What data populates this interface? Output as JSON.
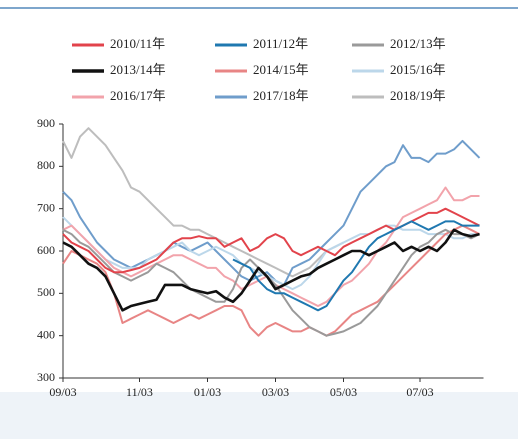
{
  "chart_data": {
    "type": "line",
    "categories": [
      "09/03",
      null,
      null,
      null,
      null,
      null,
      null,
      null,
      null,
      "11/03",
      null,
      null,
      null,
      null,
      null,
      null,
      null,
      "01/03",
      null,
      null,
      null,
      null,
      null,
      null,
      null,
      "03/03",
      null,
      null,
      null,
      null,
      null,
      null,
      null,
      "05/03",
      null,
      null,
      null,
      null,
      null,
      null,
      null,
      null,
      "07/03",
      null,
      null,
      null,
      null,
      null,
      null,
      null
    ],
    "ylim": [
      300,
      900
    ],
    "yticks": [
      300,
      400,
      500,
      600,
      700,
      800,
      900
    ],
    "series": [
      {
        "name": "2010/11年",
        "color": "#e2434b",
        "values": [
          640,
          620,
          610,
          600,
          580,
          560,
          550,
          550,
          555,
          560,
          570,
          580,
          600,
          620,
          630,
          630,
          635,
          630,
          630,
          610,
          620,
          630,
          600,
          610,
          630,
          640,
          630,
          600,
          590,
          600,
          610,
          600,
          590,
          610,
          620,
          630,
          640,
          650,
          660,
          650,
          660,
          670,
          680,
          690,
          690,
          700,
          690,
          680,
          670,
          660
        ]
      },
      {
        "name": "2011/12年",
        "color": "#1f78b0",
        "values": [
          null,
          null,
          null,
          null,
          null,
          null,
          null,
          null,
          null,
          null,
          null,
          null,
          null,
          null,
          null,
          null,
          null,
          null,
          null,
          null,
          580,
          570,
          560,
          530,
          510,
          500,
          500,
          490,
          480,
          470,
          460,
          470,
          500,
          530,
          550,
          580,
          610,
          630,
          640,
          650,
          660,
          670,
          660,
          650,
          660,
          670,
          670,
          660,
          660,
          660
        ]
      },
      {
        "name": "2012/13年",
        "color": "#9a9a9a",
        "values": [
          650,
          640,
          620,
          610,
          590,
          570,
          550,
          540,
          530,
          540,
          550,
          570,
          560,
          550,
          530,
          510,
          500,
          490,
          480,
          480,
          510,
          560,
          580,
          560,
          540,
          520,
          490,
          460,
          440,
          420,
          410,
          400,
          405,
          410,
          420,
          430,
          450,
          470,
          500,
          530,
          560,
          590,
          610,
          620,
          640,
          650,
          640,
          640,
          630,
          640
        ]
      },
      {
        "name": "2013/14年",
        "color": "#111111",
        "values": [
          620,
          610,
          590,
          570,
          560,
          540,
          500,
          460,
          470,
          475,
          480,
          485,
          520,
          520,
          520,
          510,
          505,
          500,
          505,
          490,
          480,
          500,
          530,
          560,
          540,
          510,
          520,
          530,
          540,
          545,
          560,
          570,
          580,
          590,
          600,
          600,
          590,
          600,
          610,
          620,
          600,
          610,
          600,
          610,
          600,
          620,
          650,
          640,
          635,
          640
        ]
      },
      {
        "name": "2014/15年",
        "color": "#e88585",
        "values": [
          570,
          600,
          590,
          580,
          570,
          550,
          500,
          430,
          440,
          450,
          460,
          450,
          440,
          430,
          440,
          450,
          440,
          450,
          460,
          470,
          470,
          460,
          420,
          400,
          420,
          430,
          420,
          410,
          410,
          420,
          410,
          400,
          410,
          430,
          450,
          460,
          470,
          480,
          500,
          520,
          540,
          560,
          580,
          600,
          620,
          640,
          650,
          660,
          650,
          640
        ]
      },
      {
        "name": "2015/16年",
        "color": "#bcd7ea",
        "values": [
          680,
          660,
          640,
          620,
          600,
          580,
          570,
          560,
          560,
          560,
          580,
          590,
          600,
          610,
          620,
          600,
          590,
          600,
          610,
          600,
          590,
          570,
          560,
          550,
          540,
          530,
          520,
          510,
          520,
          540,
          570,
          600,
          610,
          620,
          630,
          640,
          640,
          650,
          660,
          660,
          650,
          650,
          650,
          640,
          640,
          640,
          630,
          630,
          640,
          640
        ]
      },
      {
        "name": "2016/17年",
        "color": "#f2a3ab",
        "values": [
          650,
          660,
          640,
          620,
          600,
          580,
          560,
          550,
          540,
          550,
          560,
          570,
          580,
          590,
          590,
          580,
          570,
          560,
          560,
          540,
          530,
          510,
          520,
          530,
          540,
          520,
          510,
          500,
          490,
          480,
          470,
          480,
          500,
          520,
          530,
          550,
          570,
          600,
          620,
          650,
          680,
          690,
          700,
          710,
          720,
          750,
          720,
          720,
          730,
          730
        ]
      },
      {
        "name": "2017/18年",
        "color": "#6f9dcb",
        "values": [
          740,
          720,
          680,
          650,
          620,
          600,
          580,
          570,
          560,
          570,
          580,
          590,
          600,
          620,
          610,
          600,
          610,
          620,
          600,
          580,
          560,
          540,
          530,
          540,
          550,
          530,
          520,
          560,
          570,
          580,
          600,
          620,
          640,
          660,
          700,
          740,
          760,
          780,
          800,
          810,
          850,
          820,
          820,
          810,
          830,
          830,
          840,
          860,
          840,
          820
        ]
      },
      {
        "name": "2018/19年",
        "color": "#bdbdbd",
        "values": [
          860,
          820,
          870,
          890,
          870,
          850,
          820,
          790,
          750,
          740,
          720,
          700,
          680,
          660,
          660,
          650,
          650,
          640,
          630,
          620,
          610,
          600,
          590,
          580,
          570,
          560,
          550,
          540,
          550,
          560,
          580,
          600,
          610,
          620,
          null,
          null,
          null,
          null,
          null,
          null,
          null,
          null,
          null,
          null,
          null,
          null,
          null,
          null,
          null,
          null
        ]
      }
    ]
  }
}
